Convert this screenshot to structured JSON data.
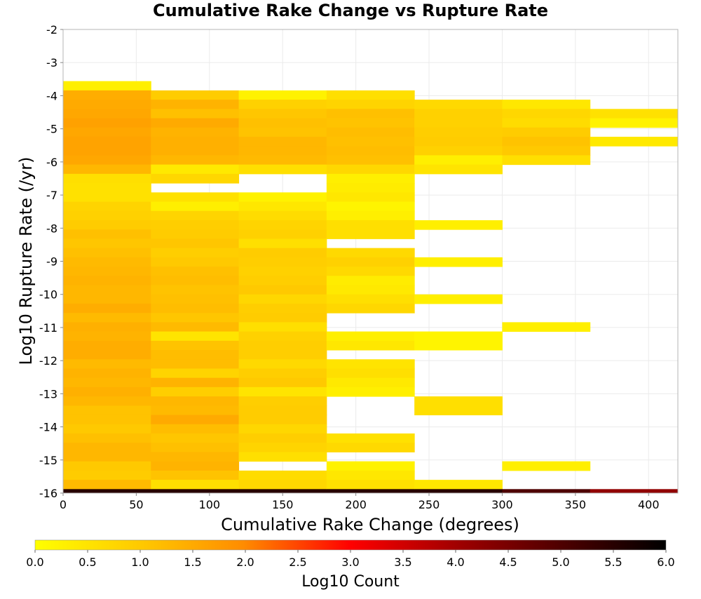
{
  "chart_data": {
    "type": "heatmap",
    "title": "Cumulative Rake Change vs Rupture Rate",
    "xlabel": "Cumulative Rake Change (degrees)",
    "ylabel": "Log10 Rupture Rate (/yr)",
    "xlim": [
      0,
      420
    ],
    "ylim": [
      -16,
      -2
    ],
    "x_ticks": [
      0,
      50,
      100,
      150,
      200,
      250,
      300,
      350,
      400
    ],
    "y_ticks": [
      -2,
      -3,
      -4,
      -5,
      -6,
      -7,
      -8,
      -9,
      -10,
      -11,
      -12,
      -13,
      -14,
      -15,
      -16
    ],
    "grid": true,
    "x_bin_width": 60,
    "y_bin_height": 0.28,
    "x_bins": [
      0,
      60,
      120,
      180,
      240,
      300,
      360
    ],
    "colorbar": {
      "label": "Log10 Count",
      "min": 0.0,
      "max": 6.0,
      "ticks": [
        "0.0",
        "0.5",
        "1.0",
        "1.5",
        "2.0",
        "2.5",
        "3.0",
        "3.5",
        "4.0",
        "4.5",
        "5.0",
        "5.5",
        "6.0"
      ],
      "position": "bottom",
      "colormap": [
        [
          0.0,
          "#ffff00"
        ],
        [
          0.17,
          "#ffc800"
        ],
        [
          0.33,
          "#ff8c00"
        ],
        [
          0.5,
          "#ff0000"
        ],
        [
          0.67,
          "#a00000"
        ],
        [
          0.83,
          "#500000"
        ],
        [
          1.0,
          "#000000"
        ]
      ]
    },
    "columns": [
      {
        "x": 0,
        "cells": [
          {
            "y": -3.84,
            "v": 0.3
          },
          {
            "y": -4.12,
            "v": 1.45
          },
          {
            "y": -4.4,
            "v": 1.5
          },
          {
            "y": -4.68,
            "v": 1.55
          },
          {
            "y": -4.96,
            "v": 1.65
          },
          {
            "y": -5.24,
            "v": 1.55
          },
          {
            "y": -5.52,
            "v": 1.62
          },
          {
            "y": -5.8,
            "v": 1.62
          },
          {
            "y": -6.08,
            "v": 1.55
          },
          {
            "y": -6.36,
            "v": 1.3
          },
          {
            "y": -6.64,
            "v": 0.6
          },
          {
            "y": -6.92,
            "v": 0.55
          },
          {
            "y": -7.2,
            "v": 0.55
          },
          {
            "y": -7.48,
            "v": 0.8
          },
          {
            "y": -7.76,
            "v": 0.85
          },
          {
            "y": -8.04,
            "v": 0.95
          },
          {
            "y": -8.32,
            "v": 1.15
          },
          {
            "y": -8.6,
            "v": 1.05
          },
          {
            "y": -8.88,
            "v": 1.15
          },
          {
            "y": -9.16,
            "v": 1.25
          },
          {
            "y": -9.44,
            "v": 1.3
          },
          {
            "y": -9.72,
            "v": 1.35
          },
          {
            "y": -10.0,
            "v": 1.3
          },
          {
            "y": -10.28,
            "v": 1.3
          },
          {
            "y": -10.56,
            "v": 1.45
          },
          {
            "y": -10.84,
            "v": 1.25
          },
          {
            "y": -11.12,
            "v": 1.4
          },
          {
            "y": -11.4,
            "v": 1.35
          },
          {
            "y": -11.68,
            "v": 1.45
          },
          {
            "y": -11.96,
            "v": 1.45
          },
          {
            "y": -12.24,
            "v": 1.25
          },
          {
            "y": -12.52,
            "v": 1.35
          },
          {
            "y": -12.8,
            "v": 1.3
          },
          {
            "y": -13.08,
            "v": 1.4
          },
          {
            "y": -13.36,
            "v": 1.3
          },
          {
            "y": -13.64,
            "v": 1.1
          },
          {
            "y": -13.92,
            "v": 1.1
          },
          {
            "y": -14.2,
            "v": 1.0
          },
          {
            "y": -14.48,
            "v": 1.15
          },
          {
            "y": -14.76,
            "v": 1.3
          },
          {
            "y": -15.04,
            "v": 1.3
          },
          {
            "y": -15.32,
            "v": 1.0
          },
          {
            "y": -15.6,
            "v": 0.95
          },
          {
            "y": -15.88,
            "v": 1.25
          },
          {
            "y": -16.16,
            "v": 5.5
          }
        ]
      },
      {
        "x": 60,
        "cells": [
          {
            "y": -4.12,
            "v": 0.95
          },
          {
            "y": -4.4,
            "v": 1.35
          },
          {
            "y": -4.68,
            "v": 1.15
          },
          {
            "y": -4.96,
            "v": 1.5
          },
          {
            "y": -5.24,
            "v": 1.35
          },
          {
            "y": -5.52,
            "v": 1.4
          },
          {
            "y": -5.8,
            "v": 1.4
          },
          {
            "y": -6.08,
            "v": 1.3
          },
          {
            "y": -6.36,
            "v": 0.4
          },
          {
            "y": -6.64,
            "v": 0.75
          },
          {
            "y": -7.2,
            "v": 0.55
          },
          {
            "y": -7.48,
            "v": 0.3
          },
          {
            "y": -7.76,
            "v": 0.8
          },
          {
            "y": -8.04,
            "v": 0.9
          },
          {
            "y": -8.32,
            "v": 0.95
          },
          {
            "y": -8.6,
            "v": 1.05
          },
          {
            "y": -8.88,
            "v": 0.9
          },
          {
            "y": -9.16,
            "v": 1.0
          },
          {
            "y": -9.44,
            "v": 1.15
          },
          {
            "y": -9.72,
            "v": 1.2
          },
          {
            "y": -10.0,
            "v": 1.1
          },
          {
            "y": -10.28,
            "v": 1.15
          },
          {
            "y": -10.56,
            "v": 1.2
          },
          {
            "y": -10.84,
            "v": 1.05
          },
          {
            "y": -11.12,
            "v": 1.25
          },
          {
            "y": -11.4,
            "v": 0.5
          },
          {
            "y": -11.68,
            "v": 1.1
          },
          {
            "y": -11.96,
            "v": 1.2
          },
          {
            "y": -12.24,
            "v": 1.2
          },
          {
            "y": -12.52,
            "v": 0.8
          },
          {
            "y": -12.8,
            "v": 1.35
          },
          {
            "y": -13.08,
            "v": 0.9
          },
          {
            "y": -13.36,
            "v": 1.3
          },
          {
            "y": -13.64,
            "v": 1.25
          },
          {
            "y": -13.92,
            "v": 1.5
          },
          {
            "y": -14.2,
            "v": 1.2
          },
          {
            "y": -14.48,
            "v": 1.05
          },
          {
            "y": -14.76,
            "v": 1.15
          },
          {
            "y": -15.04,
            "v": 1.3
          },
          {
            "y": -15.32,
            "v": 1.35
          },
          {
            "y": -15.6,
            "v": 1.1
          },
          {
            "y": -15.88,
            "v": 0.6
          },
          {
            "y": -16.16,
            "v": 5.5
          }
        ]
      },
      {
        "x": 120,
        "cells": [
          {
            "y": -4.12,
            "v": 0.25
          },
          {
            "y": -4.4,
            "v": 0.85
          },
          {
            "y": -4.68,
            "v": 1.05
          },
          {
            "y": -4.96,
            "v": 1.15
          },
          {
            "y": -5.24,
            "v": 1.1
          },
          {
            "y": -5.52,
            "v": 1.3
          },
          {
            "y": -5.8,
            "v": 1.3
          },
          {
            "y": -6.08,
            "v": 1.25
          },
          {
            "y": -6.36,
            "v": 0.6
          },
          {
            "y": -7.2,
            "v": 0.25
          },
          {
            "y": -7.48,
            "v": 0.45
          },
          {
            "y": -7.76,
            "v": 0.65
          },
          {
            "y": -8.04,
            "v": 0.8
          },
          {
            "y": -8.32,
            "v": 0.85
          },
          {
            "y": -8.6,
            "v": 0.6
          },
          {
            "y": -8.88,
            "v": 0.95
          },
          {
            "y": -9.16,
            "v": 0.9
          },
          {
            "y": -9.44,
            "v": 0.85
          },
          {
            "y": -9.72,
            "v": 0.9
          },
          {
            "y": -10.0,
            "v": 1.0
          },
          {
            "y": -10.28,
            "v": 0.75
          },
          {
            "y": -10.56,
            "v": 0.9
          },
          {
            "y": -10.84,
            "v": 0.95
          },
          {
            "y": -11.12,
            "v": 0.6
          },
          {
            "y": -11.4,
            "v": 0.85
          },
          {
            "y": -11.68,
            "v": 0.9
          },
          {
            "y": -11.96,
            "v": 0.9
          },
          {
            "y": -12.24,
            "v": 0.7
          },
          {
            "y": -12.52,
            "v": 0.9
          },
          {
            "y": -12.8,
            "v": 1.0
          },
          {
            "y": -13.08,
            "v": 0.5
          },
          {
            "y": -13.36,
            "v": 0.9
          },
          {
            "y": -13.64,
            "v": 0.95
          },
          {
            "y": -13.92,
            "v": 0.95
          },
          {
            "y": -14.2,
            "v": 0.75
          },
          {
            "y": -14.48,
            "v": 0.9
          },
          {
            "y": -14.76,
            "v": 0.8
          },
          {
            "y": -15.04,
            "v": 0.6
          },
          {
            "y": -15.6,
            "v": 0.65
          },
          {
            "y": -15.88,
            "v": 0.75
          },
          {
            "y": -16.16,
            "v": 5.5
          }
        ]
      },
      {
        "x": 180,
        "cells": [
          {
            "y": -4.12,
            "v": 0.6
          },
          {
            "y": -4.4,
            "v": 0.8
          },
          {
            "y": -4.68,
            "v": 1.15
          },
          {
            "y": -4.96,
            "v": 1.1
          },
          {
            "y": -5.24,
            "v": 1.2
          },
          {
            "y": -5.52,
            "v": 1.15
          },
          {
            "y": -5.8,
            "v": 1.2
          },
          {
            "y": -6.08,
            "v": 1.15
          },
          {
            "y": -6.36,
            "v": 0.75
          },
          {
            "y": -6.64,
            "v": 0.3
          },
          {
            "y": -6.92,
            "v": 0.35
          },
          {
            "y": -7.2,
            "v": 0.45
          },
          {
            "y": -7.48,
            "v": 0.2
          },
          {
            "y": -7.76,
            "v": 0.3
          },
          {
            "y": -8.04,
            "v": 0.6
          },
          {
            "y": -8.32,
            "v": 0.6
          },
          {
            "y": -8.88,
            "v": 0.7
          },
          {
            "y": -9.16,
            "v": 0.85
          },
          {
            "y": -9.44,
            "v": 0.7
          },
          {
            "y": -9.72,
            "v": 0.35
          },
          {
            "y": -10.0,
            "v": 0.4
          },
          {
            "y": -10.28,
            "v": 0.6
          },
          {
            "y": -10.56,
            "v": 0.75
          },
          {
            "y": -11.4,
            "v": 0.3
          },
          {
            "y": -11.68,
            "v": 0.45
          },
          {
            "y": -12.24,
            "v": 0.5
          },
          {
            "y": -12.52,
            "v": 0.6
          },
          {
            "y": -12.8,
            "v": 0.4
          },
          {
            "y": -13.08,
            "v": 0.3
          },
          {
            "y": -14.48,
            "v": 0.55
          },
          {
            "y": -14.76,
            "v": 0.7
          },
          {
            "y": -15.32,
            "v": 0.25
          },
          {
            "y": -15.6,
            "v": 0.45
          },
          {
            "y": -15.88,
            "v": 0.55
          },
          {
            "y": -16.16,
            "v": 5.5
          }
        ]
      },
      {
        "x": 240,
        "cells": [
          {
            "y": -4.4,
            "v": 0.7
          },
          {
            "y": -4.68,
            "v": 0.85
          },
          {
            "y": -4.96,
            "v": 0.85
          },
          {
            "y": -5.24,
            "v": 0.9
          },
          {
            "y": -5.52,
            "v": 0.95
          },
          {
            "y": -5.8,
            "v": 0.85
          },
          {
            "y": -6.08,
            "v": 0.3
          },
          {
            "y": -6.36,
            "v": 0.5
          },
          {
            "y": -8.04,
            "v": 0.3
          },
          {
            "y": -9.16,
            "v": 0.3
          },
          {
            "y": -10.28,
            "v": 0.3
          },
          {
            "y": -11.4,
            "v": 0.2
          },
          {
            "y": -11.68,
            "v": 0.2
          },
          {
            "y": -13.36,
            "v": 0.6
          },
          {
            "y": -13.64,
            "v": 0.6
          },
          {
            "y": -15.88,
            "v": 0.45
          },
          {
            "y": -16.16,
            "v": 5.5
          }
        ]
      },
      {
        "x": 300,
        "cells": [
          {
            "y": -4.4,
            "v": 0.45
          },
          {
            "y": -4.68,
            "v": 0.75
          },
          {
            "y": -4.96,
            "v": 0.65
          },
          {
            "y": -5.24,
            "v": 0.95
          },
          {
            "y": -5.52,
            "v": 1.1
          },
          {
            "y": -5.8,
            "v": 1.0
          },
          {
            "y": -6.08,
            "v": 0.6
          },
          {
            "y": -11.12,
            "v": 0.3
          },
          {
            "y": -15.32,
            "v": 0.3
          },
          {
            "y": -16.16,
            "v": 5.0
          }
        ]
      },
      {
        "x": 360,
        "cells": [
          {
            "y": -4.68,
            "v": 0.55
          },
          {
            "y": -4.96,
            "v": 0.25
          },
          {
            "y": -5.52,
            "v": 0.4
          },
          {
            "y": -16.16,
            "v": 4.2
          }
        ]
      }
    ]
  }
}
